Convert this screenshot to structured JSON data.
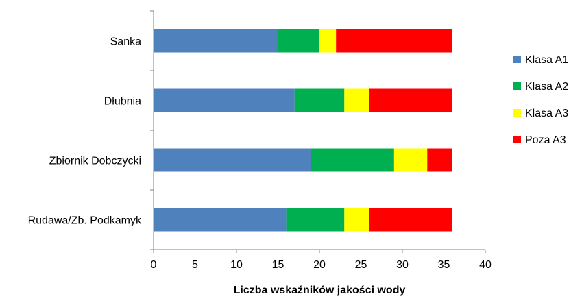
{
  "chart_data": {
    "type": "bar",
    "orientation": "horizontal",
    "stacked": true,
    "title": "",
    "xlabel": "Liczba wskaźników jakości wody",
    "ylabel": "",
    "xlim": [
      0,
      40
    ],
    "xticks": [
      "0",
      "5",
      "10",
      "15",
      "20",
      "25",
      "30",
      "35",
      "40"
    ],
    "categories": [
      "Sanka",
      "Dłubnia",
      "Zbiornik Dobczycki",
      "Rudawa/Zb. Podkamyk"
    ],
    "series": [
      {
        "name": "Klasa A1",
        "color": "#4F81BD",
        "values": [
          15,
          17,
          19,
          16
        ]
      },
      {
        "name": "Klasa A2",
        "color": "#00B050",
        "values": [
          5,
          6,
          10,
          7
        ]
      },
      {
        "name": "Klasa A3",
        "color": "#FFFF00",
        "values": [
          2,
          3,
          4,
          3
        ]
      },
      {
        "name": "Poza A3",
        "color": "#FF0000",
        "values": [
          14,
          10,
          3,
          10
        ]
      }
    ],
    "legend_position": "right",
    "grid": false
  }
}
